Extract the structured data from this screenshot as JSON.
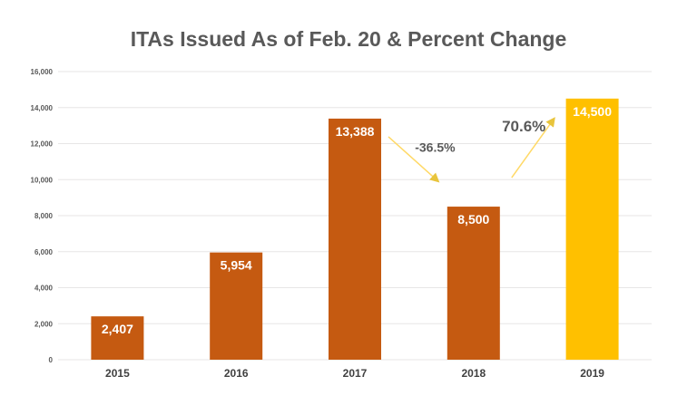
{
  "chart_data": {
    "type": "bar",
    "title": "ITAs Issued As of Feb. 20 & Percent Change",
    "xlabel": "",
    "ylabel": "",
    "categories": [
      "2015",
      "2016",
      "2017",
      "2018",
      "2019"
    ],
    "values": [
      2407,
      5954,
      13388,
      8500,
      14500
    ],
    "data_labels": [
      "2,407",
      "5,954",
      "13,388",
      "8,500",
      "14,500"
    ],
    "ylim": [
      0,
      16000
    ],
    "yticks": [
      0,
      2000,
      4000,
      6000,
      8000,
      10000,
      12000,
      14000,
      16000
    ],
    "ytick_labels": [
      "0",
      "2,000",
      "4,000",
      "6,000",
      "8,000",
      "10,000",
      "12,000",
      "14,000",
      "16,000"
    ],
    "grid": true,
    "legend": "none",
    "bar_colors": [
      "#c55a11",
      "#c55a11",
      "#c55a11",
      "#c55a11",
      "#ffc000"
    ],
    "annotations": [
      {
        "text": "-36.5%",
        "from": "2017",
        "to": "2018",
        "direction": "down"
      },
      {
        "text": "70.6%",
        "from": "2018",
        "to": "2019",
        "direction": "up"
      }
    ],
    "arrow_color": "#ffd966",
    "grid_color": "#e7e6e6",
    "text_color": "#595959"
  }
}
